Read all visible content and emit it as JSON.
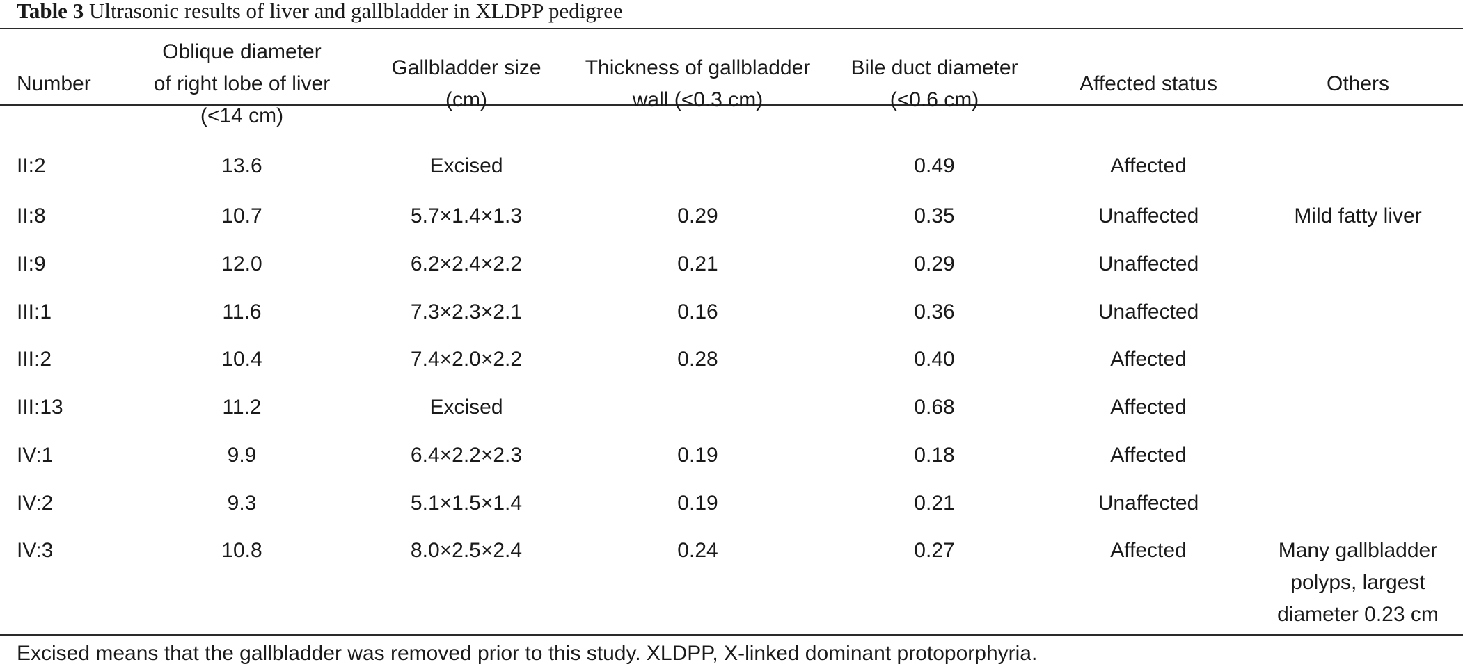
{
  "caption": {
    "label": "Table 3",
    "text": "Ultrasonic results of liver and gallbladder in XLDPP pedigree"
  },
  "table": {
    "headers": [
      [
        "Number"
      ],
      [
        "Oblique diameter",
        "of right lobe of liver",
        "(<14 cm)"
      ],
      [
        "Gallbladder size",
        "(cm)"
      ],
      [
        "Thickness of gallbladder",
        "wall (<0.3 cm)"
      ],
      [
        "Bile duct diameter",
        "(<0.6 cm)"
      ],
      [
        "Affected status"
      ],
      [
        "Others"
      ]
    ],
    "rows": [
      [
        "II:2",
        "13.6",
        "Excised",
        "",
        "0.49",
        "Affected",
        ""
      ],
      [
        "II:8",
        "10.7",
        "5.7×1.4×1.3",
        "0.29",
        "0.35",
        "Unaffected",
        "Mild fatty liver"
      ],
      [
        "II:9",
        "12.0",
        "6.2×2.4×2.2",
        "0.21",
        "0.29",
        "Unaffected",
        ""
      ],
      [
        "III:1",
        "11.6",
        "7.3×2.3×2.1",
        "0.16",
        "0.36",
        "Unaffected",
        ""
      ],
      [
        "III:2",
        "10.4",
        "7.4×2.0×2.2",
        "0.28",
        "0.40",
        "Affected",
        ""
      ],
      [
        "III:13",
        "11.2",
        "Excised",
        "",
        "0.68",
        "Affected",
        ""
      ],
      [
        "IV:1",
        "9.9",
        "6.4×2.2×2.3",
        "0.19",
        "0.18",
        "Affected",
        ""
      ],
      [
        "IV:2",
        "9.3",
        "5.1×1.5×1.4",
        "0.19",
        "0.21",
        "Unaffected",
        ""
      ],
      [
        "IV:3",
        "10.8",
        "8.0×2.5×2.4",
        "0.24",
        "0.27",
        "Affected",
        [
          "Many gallbladder",
          "polyps, largest",
          "diameter 0.23 cm"
        ]
      ]
    ]
  },
  "footnote": "Excised means that the gallbladder was removed prior to this study. XLDPP, X-linked dominant protoporphyria."
}
